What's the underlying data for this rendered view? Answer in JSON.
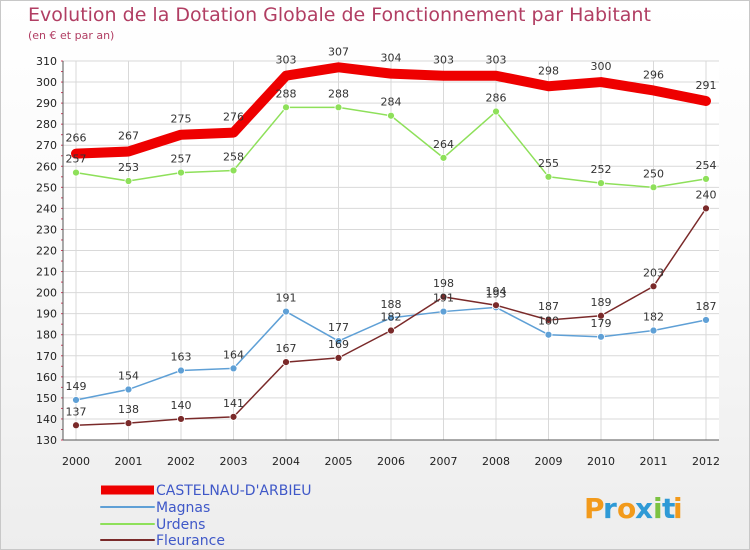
{
  "title": "Evolution de la Dotation Globale de Fonctionnement par Habitant",
  "subtitle": "(en € et par an)",
  "logo": {
    "letters": [
      "P",
      "r",
      "o",
      "x",
      "i",
      "t",
      "i"
    ],
    "colors": [
      "#f29a1b",
      "#2f9ad6",
      "#f29a1b",
      "#2f9ad6",
      "#7cc242",
      "#2f9ad6",
      "#f29a1b"
    ]
  },
  "chart_data": {
    "type": "line",
    "title": "Evolution de la Dotation Globale de Fonctionnement par Habitant",
    "ylabel": "(en € et par an)",
    "xlabel": "",
    "x": [
      "2000",
      "2001",
      "2002",
      "2003",
      "2004",
      "2005",
      "2006",
      "2007",
      "2008",
      "2009",
      "2010",
      "2011",
      "2012"
    ],
    "ylim": [
      130,
      310
    ],
    "yticks": [
      130,
      140,
      150,
      160,
      170,
      180,
      190,
      200,
      210,
      220,
      230,
      240,
      250,
      260,
      270,
      280,
      290,
      300,
      310
    ],
    "series": [
      {
        "name": "CASTELNAU-D'ARBIEU",
        "color": "#ee0000",
        "values": [
          266,
          267,
          275,
          276,
          303,
          307,
          304,
          303,
          303,
          298,
          300,
          296,
          291
        ]
      },
      {
        "name": "Magnas",
        "color": "#5fa0d6",
        "values": [
          149,
          154,
          163,
          164,
          191,
          177,
          188,
          191,
          193,
          180,
          179,
          182,
          187
        ]
      },
      {
        "name": "Urdens",
        "color": "#8ee05a",
        "values": [
          257,
          253,
          257,
          258,
          288,
          288,
          284,
          264,
          286,
          255,
          252,
          250,
          254
        ]
      },
      {
        "name": "Fleurance",
        "color": "#7a2a2a",
        "values": [
          137,
          138,
          140,
          141,
          167,
          169,
          182,
          198,
          194,
          187,
          189,
          203,
          240
        ]
      }
    ]
  }
}
